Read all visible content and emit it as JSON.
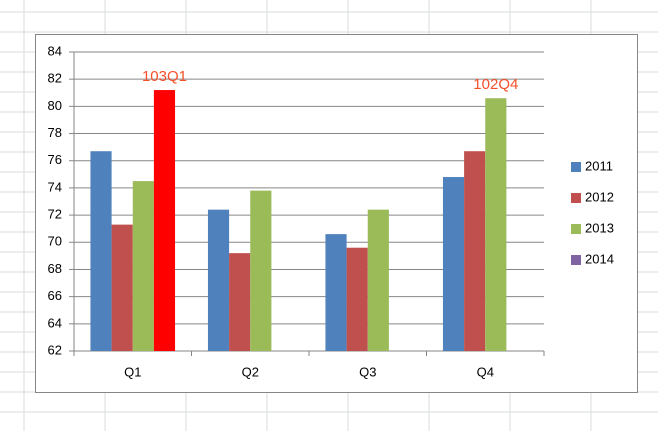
{
  "chart_data": {
    "type": "bar",
    "categories": [
      "Q1",
      "Q2",
      "Q3",
      "Q4"
    ],
    "series": [
      {
        "name": "2011",
        "color": "#4f81bd",
        "values": [
          76.7,
          72.4,
          70.6,
          74.8
        ]
      },
      {
        "name": "2012",
        "color": "#c0504d",
        "values": [
          71.3,
          69.2,
          69.6,
          76.7
        ]
      },
      {
        "name": "2013",
        "color": "#9bbb59",
        "values": [
          74.5,
          73.8,
          72.4,
          80.6
        ]
      },
      {
        "name": "2014",
        "color": "#8064a2",
        "values": [
          81.2,
          null,
          null,
          null
        ],
        "point_colors": [
          "#ff0000",
          null,
          null,
          null
        ]
      }
    ],
    "ylim": [
      62,
      84
    ],
    "yticks": [
      62,
      64,
      66,
      68,
      70,
      72,
      74,
      76,
      78,
      80,
      82,
      84
    ],
    "grid": true,
    "legend": "right",
    "annotations": [
      {
        "text": "103Q1",
        "series": 3,
        "category": 0,
        "color": "#f4502a"
      },
      {
        "text": "102Q4",
        "series": 2,
        "category": 3,
        "color": "#f4502a"
      }
    ]
  }
}
